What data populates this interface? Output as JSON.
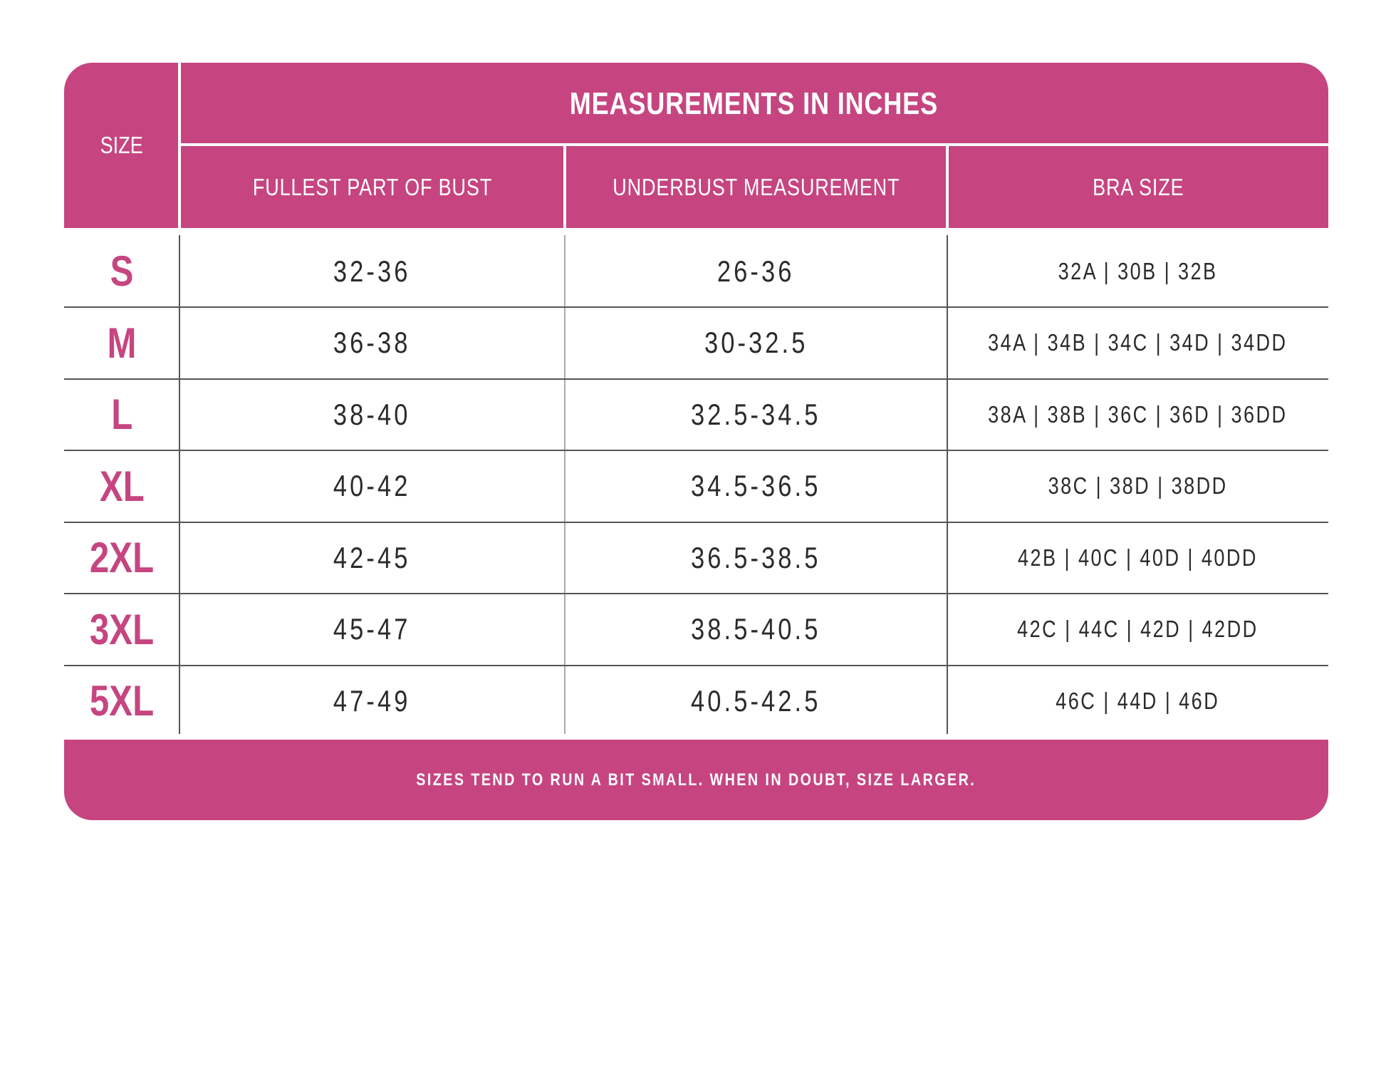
{
  "header": {
    "title": "MEASUREMENTS IN INCHES",
    "size_label": "SIZE",
    "columns": [
      "FULLEST PART OF BUST",
      "UNDERBUST MEASUREMENT",
      "BRA SIZE"
    ]
  },
  "rows": [
    {
      "size": "S",
      "bust": "32-36",
      "underbust": "26-36",
      "bra": "32A | 30B | 32B"
    },
    {
      "size": "M",
      "bust": "36-38",
      "underbust": "30-32.5",
      "bra": "34A | 34B | 34C | 34D | 34DD"
    },
    {
      "size": "L",
      "bust": "38-40",
      "underbust": "32.5-34.5",
      "bra": "38A | 38B | 36C | 36D | 36DD"
    },
    {
      "size": "XL",
      "bust": "40-42",
      "underbust": "34.5-36.5",
      "bra": "38C | 38D | 38DD"
    },
    {
      "size": "2XL",
      "bust": "42-45",
      "underbust": "36.5-38.5",
      "bra": "42B | 40C | 40D | 40DD"
    },
    {
      "size": "3XL",
      "bust": "45-47",
      "underbust": "38.5-40.5",
      "bra": "42C | 44C | 42D | 42DD"
    },
    {
      "size": "5XL",
      "bust": "47-49",
      "underbust": "40.5-42.5",
      "bra": "46C | 44D | 46D"
    }
  ],
  "footer": {
    "note": "SIZES TEND TO RUN A BIT SMALL. WHEN IN DOUBT, SIZE LARGER."
  },
  "colors": {
    "accent": "#c64580",
    "text": "#2b2b2b"
  }
}
